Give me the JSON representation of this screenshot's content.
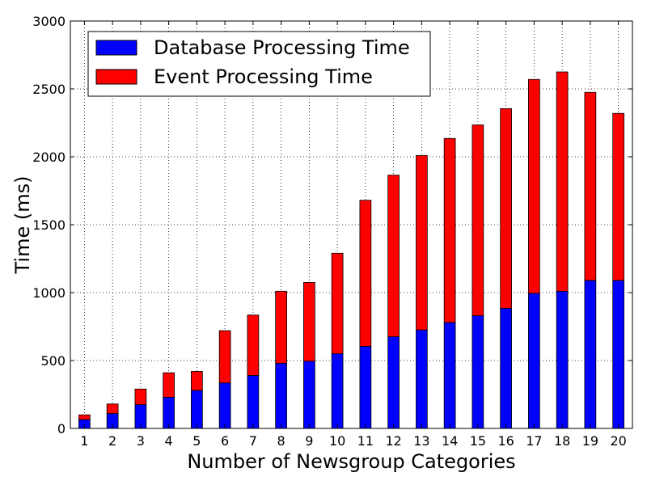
{
  "chart_data": {
    "type": "bar",
    "stacked": true,
    "categories": [
      "1",
      "2",
      "3",
      "4",
      "5",
      "6",
      "7",
      "8",
      "9",
      "10",
      "11",
      "12",
      "13",
      "14",
      "15",
      "16",
      "17",
      "18",
      "19",
      "20"
    ],
    "series": [
      {
        "name": "Database Processing Time",
        "color": "#0000ff",
        "values": [
          65,
          110,
          175,
          230,
          280,
          335,
          390,
          480,
          495,
          550,
          605,
          675,
          725,
          780,
          830,
          885,
          995,
          1010,
          1090,
          1090
        ]
      },
      {
        "name": "Event Processing Time",
        "color": "#ff0000",
        "values": [
          35,
          70,
          115,
          180,
          140,
          385,
          445,
          530,
          580,
          740,
          1075,
          1190,
          1285,
          1355,
          1405,
          1470,
          1575,
          1615,
          1385,
          1230
        ]
      }
    ],
    "xlabel": "Number of Newsgroup Categories",
    "ylabel": "Time (ms)",
    "ylim": [
      0,
      3000
    ],
    "yticks": [
      0,
      500,
      1000,
      1500,
      2000,
      2500,
      3000
    ],
    "grid": true,
    "legend_position": "upper-left"
  }
}
